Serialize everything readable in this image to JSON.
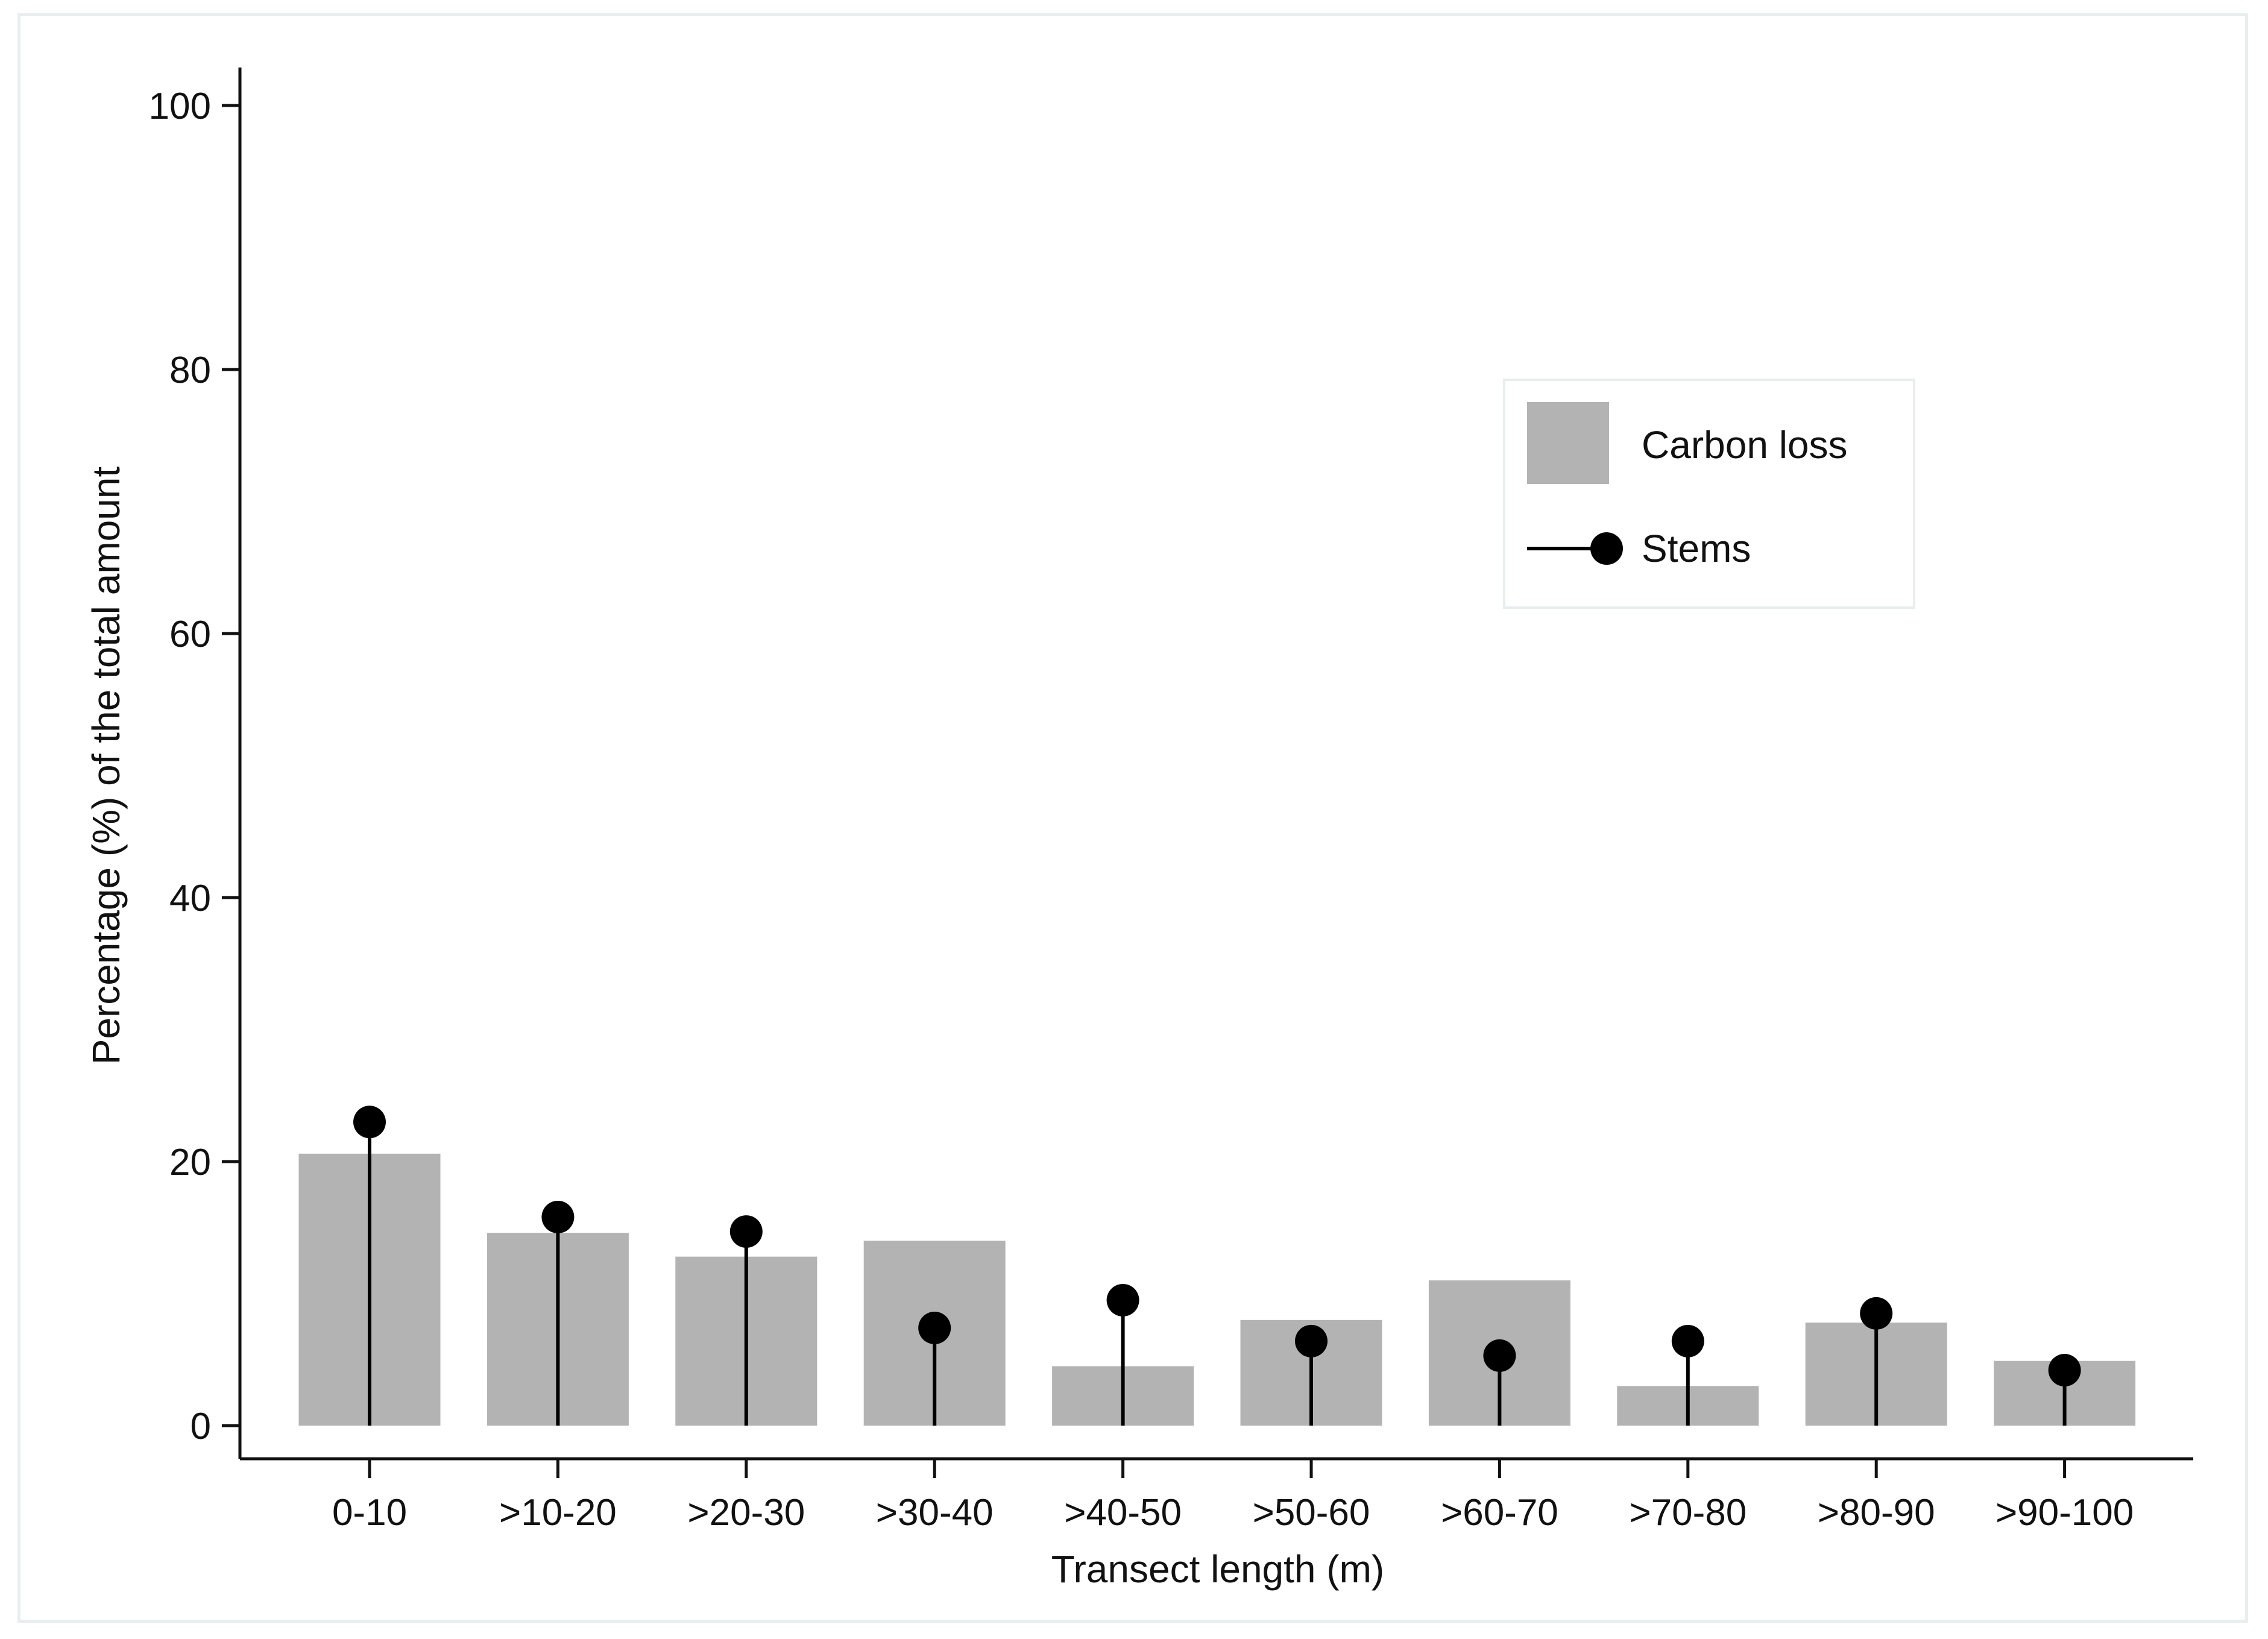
{
  "chart_data": {
    "type": "bar",
    "title": "",
    "xlabel": "Transect length (m)",
    "ylabel": "Percentage (%) of the total amount",
    "ylim": [
      0,
      100
    ],
    "yticks": [
      0,
      20,
      40,
      60,
      80,
      100
    ],
    "categories": [
      "0-10",
      ">10-20",
      ">20-30",
      ">30-40",
      ">40-50",
      ">50-60",
      ">60-70",
      ">70-80",
      ">80-90",
      ">90-100"
    ],
    "series": [
      {
        "name": "Carbon loss",
        "kind": "bar",
        "color": "#b3b3b3",
        "values": [
          20.6,
          14.6,
          12.8,
          14.0,
          4.5,
          8.0,
          11.0,
          3.0,
          7.8,
          4.9
        ]
      },
      {
        "name": "Stems",
        "kind": "lollipop",
        "color": "#000000",
        "values": [
          23.0,
          15.8,
          14.7,
          7.4,
          9.5,
          6.4,
          5.3,
          6.4,
          8.5,
          4.2
        ]
      }
    ],
    "legend": {
      "position": "top-right",
      "entries": [
        "Carbon loss",
        "Stems"
      ]
    },
    "grid": false
  }
}
